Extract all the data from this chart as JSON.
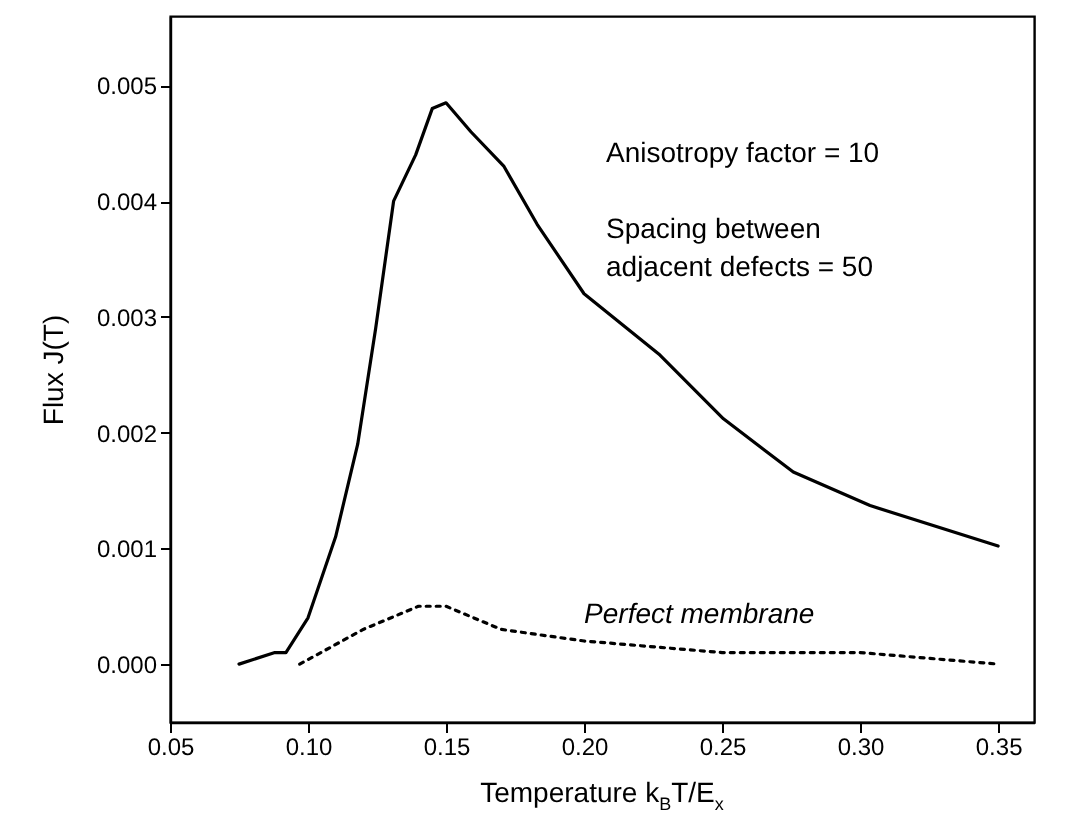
{
  "chart_data": {
    "type": "line",
    "xlabel": "Temperature  k$_{B}$T/E$_{x}$",
    "ylabel": "Flux  J(T)",
    "xlim": [
      0.05,
      0.363
    ],
    "ylim": [
      -0.0005,
      0.0056
    ],
    "xticks": [
      {
        "value": 0.05,
        "label": "0.05"
      },
      {
        "value": 0.1,
        "label": "0.10"
      },
      {
        "value": 0.15,
        "label": "0.15"
      },
      {
        "value": 0.2,
        "label": "0.20"
      },
      {
        "value": 0.25,
        "label": "0.25"
      },
      {
        "value": 0.3,
        "label": "0.30"
      },
      {
        "value": 0.35,
        "label": "0.35"
      }
    ],
    "yticks": [
      {
        "value": 0,
        "label": "0.000"
      },
      {
        "value": 0.001,
        "label": "0.001"
      },
      {
        "value": 0.002,
        "label": "0.002"
      },
      {
        "value": 0.003,
        "label": "0.003"
      },
      {
        "value": 0.004,
        "label": "0.004"
      },
      {
        "value": 0.005,
        "label": "0.005"
      }
    ],
    "grid": false,
    "marker": "none",
    "series": [
      {
        "color": "#000000",
        "line_style": "solid",
        "x": [
          0.075,
          0.088,
          0.092,
          0.1,
          0.11,
          0.118,
          0.1245,
          0.131,
          0.139,
          0.145,
          0.15,
          0.159,
          0.171,
          0.183,
          0.2,
          0.2275,
          0.2505,
          0.2758,
          0.3036,
          0.35
        ],
        "values": [
          0.0,
          0.0001,
          0.0001,
          0.0004,
          0.0011,
          0.0019,
          0.0029,
          0.004,
          0.0044,
          0.0048,
          0.00485,
          0.0046,
          0.0043,
          0.0038,
          0.0032,
          0.00267,
          0.00212,
          0.00166,
          0.00137,
          0.00102
        ]
      },
      {
        "name": "Perfect membrane",
        "color": "#000000",
        "line_style": "dotted",
        "x": [
          0.097,
          0.12,
          0.14,
          0.15,
          0.17,
          0.2,
          0.25,
          0.3,
          0.35
        ],
        "values": [
          0.0,
          0.0003,
          0.0005,
          0.0005,
          0.0003,
          0.0002,
          0.0001,
          0.0001,
          0.0
        ]
      }
    ],
    "annotations": [
      "Anisotropy factor = 10",
      "Spacing between\nadjacent defects  = 50"
    ]
  }
}
